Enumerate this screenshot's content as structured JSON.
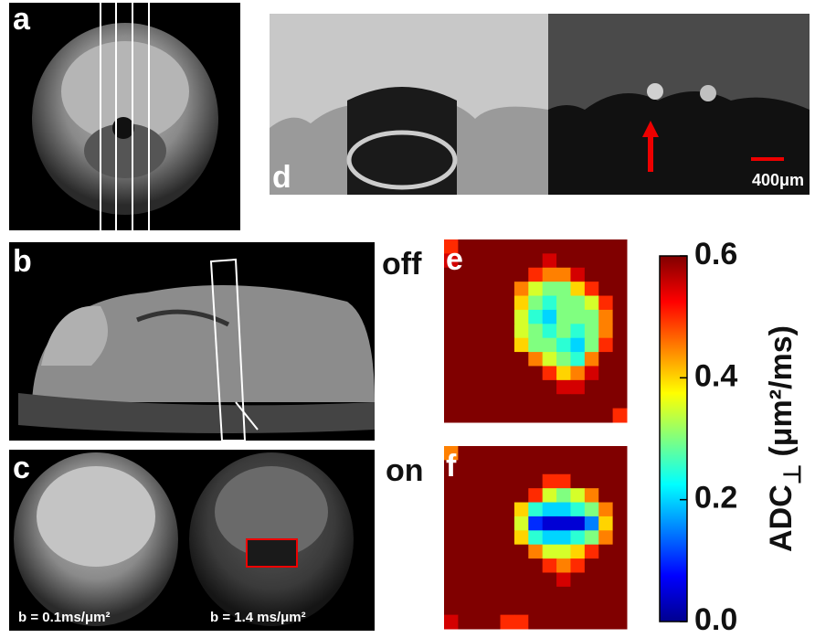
{
  "panels": {
    "a": {
      "label": "a"
    },
    "b": {
      "label": "b"
    },
    "c": {
      "label": "c",
      "captions": [
        "b = 0.1ms/μm²",
        "b = 1.4 ms/μm²"
      ]
    },
    "d": {
      "label": "d",
      "scale_bar": "400μm"
    },
    "e": {
      "label": "e",
      "side_label": "off",
      "grid": [
        [
          0.5,
          0.6,
          0.6,
          0.6,
          0.6,
          0.6,
          0.6,
          0.6,
          0.6,
          0.6,
          0.6,
          0.6,
          0.6
        ],
        [
          0.55,
          0.6,
          0.6,
          0.6,
          0.6,
          0.6,
          0.6,
          0.55,
          0.6,
          0.6,
          0.6,
          0.6,
          0.6
        ],
        [
          0.6,
          0.6,
          0.6,
          0.6,
          0.6,
          0.6,
          0.5,
          0.45,
          0.45,
          0.55,
          0.6,
          0.6,
          0.6
        ],
        [
          0.6,
          0.6,
          0.6,
          0.6,
          0.6,
          0.45,
          0.35,
          0.3,
          0.3,
          0.4,
          0.5,
          0.6,
          0.6
        ],
        [
          0.6,
          0.6,
          0.6,
          0.6,
          0.6,
          0.4,
          0.3,
          0.25,
          0.3,
          0.3,
          0.35,
          0.5,
          0.6
        ],
        [
          0.6,
          0.6,
          0.6,
          0.6,
          0.6,
          0.35,
          0.25,
          0.2,
          0.3,
          0.3,
          0.3,
          0.45,
          0.6
        ],
        [
          0.6,
          0.6,
          0.6,
          0.6,
          0.6,
          0.35,
          0.3,
          0.25,
          0.3,
          0.25,
          0.3,
          0.45,
          0.6
        ],
        [
          0.6,
          0.6,
          0.6,
          0.6,
          0.6,
          0.4,
          0.3,
          0.3,
          0.25,
          0.2,
          0.3,
          0.5,
          0.6
        ],
        [
          0.6,
          0.6,
          0.6,
          0.6,
          0.6,
          0.6,
          0.45,
          0.35,
          0.3,
          0.25,
          0.45,
          0.6,
          0.6
        ],
        [
          0.6,
          0.6,
          0.6,
          0.6,
          0.6,
          0.6,
          0.6,
          0.5,
          0.4,
          0.45,
          0.55,
          0.6,
          0.6
        ],
        [
          0.6,
          0.6,
          0.6,
          0.6,
          0.6,
          0.6,
          0.6,
          0.6,
          0.55,
          0.55,
          0.6,
          0.6,
          0.6
        ],
        [
          0.6,
          0.6,
          0.6,
          0.6,
          0.6,
          0.6,
          0.6,
          0.6,
          0.6,
          0.6,
          0.6,
          0.6,
          0.6
        ],
        [
          0.6,
          0.6,
          0.6,
          0.6,
          0.6,
          0.6,
          0.6,
          0.6,
          0.6,
          0.6,
          0.6,
          0.6,
          0.5
        ]
      ]
    },
    "f": {
      "label": "f",
      "side_label": "on",
      "grid": [
        [
          0.45,
          0.6,
          0.6,
          0.6,
          0.6,
          0.6,
          0.6,
          0.6,
          0.6,
          0.6,
          0.6,
          0.6,
          0.6
        ],
        [
          0.6,
          0.6,
          0.6,
          0.6,
          0.6,
          0.6,
          0.6,
          0.6,
          0.6,
          0.6,
          0.6,
          0.6,
          0.6
        ],
        [
          0.6,
          0.6,
          0.6,
          0.6,
          0.6,
          0.6,
          0.6,
          0.5,
          0.5,
          0.6,
          0.6,
          0.6,
          0.6
        ],
        [
          0.6,
          0.6,
          0.6,
          0.6,
          0.6,
          0.6,
          0.5,
          0.35,
          0.3,
          0.35,
          0.45,
          0.6,
          0.6
        ],
        [
          0.6,
          0.6,
          0.6,
          0.6,
          0.6,
          0.4,
          0.25,
          0.2,
          0.2,
          0.25,
          0.3,
          0.45,
          0.6
        ],
        [
          0.6,
          0.6,
          0.6,
          0.6,
          0.6,
          0.35,
          0.1,
          0.05,
          0.05,
          0.05,
          0.15,
          0.4,
          0.6
        ],
        [
          0.6,
          0.6,
          0.6,
          0.6,
          0.6,
          0.4,
          0.25,
          0.2,
          0.2,
          0.25,
          0.3,
          0.45,
          0.6
        ],
        [
          0.6,
          0.6,
          0.6,
          0.6,
          0.6,
          0.6,
          0.45,
          0.35,
          0.35,
          0.4,
          0.5,
          0.6,
          0.6
        ],
        [
          0.6,
          0.6,
          0.6,
          0.6,
          0.6,
          0.6,
          0.6,
          0.5,
          0.45,
          0.5,
          0.6,
          0.6,
          0.6
        ],
        [
          0.6,
          0.6,
          0.6,
          0.6,
          0.6,
          0.6,
          0.6,
          0.6,
          0.55,
          0.6,
          0.6,
          0.6,
          0.6
        ],
        [
          0.6,
          0.6,
          0.6,
          0.6,
          0.6,
          0.6,
          0.6,
          0.6,
          0.6,
          0.6,
          0.6,
          0.6,
          0.6
        ],
        [
          0.6,
          0.6,
          0.6,
          0.6,
          0.6,
          0.6,
          0.6,
          0.6,
          0.6,
          0.6,
          0.6,
          0.6,
          0.6
        ],
        [
          0.55,
          0.6,
          0.6,
          0.6,
          0.5,
          0.5,
          0.6,
          0.6,
          0.6,
          0.6,
          0.6,
          0.6,
          0.6
        ]
      ]
    }
  },
  "colorbar": {
    "lim": [
      0,
      0.6
    ],
    "ticks": [
      {
        "value": 0,
        "label": "0.0"
      },
      0.2,
      0.4,
      0.6
    ],
    "title": "ADC",
    "subscript": "⊥",
    "unit": "(μm²/ms)"
  }
}
